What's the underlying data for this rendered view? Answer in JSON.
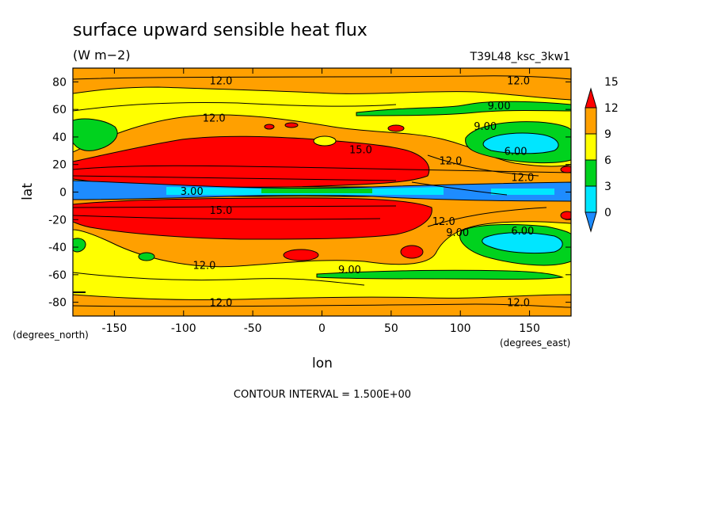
{
  "chart_data": {
    "type": "heatmap",
    "title": "surface upward sensible heat flux",
    "units": "(W m−2)",
    "run_label": "T39L48_ksc_3kw1",
    "xlabel": "lon",
    "ylabel": "lat",
    "x_unit_label": "(degrees_east)",
    "y_unit_label": "(degrees_north)",
    "xlim": [
      -180,
      180
    ],
    "ylim": [
      -90,
      90
    ],
    "x_ticks": [
      -150,
      -100,
      -50,
      0,
      50,
      100,
      150
    ],
    "y_ticks": [
      80,
      60,
      40,
      20,
      0,
      -20,
      -40,
      -60,
      -80
    ],
    "colorbar": {
      "levels": [
        0,
        3,
        6,
        9,
        12,
        15
      ],
      "colors": [
        "#1e8cff",
        "#00e6ff",
        "#00d21e",
        "#ffff00",
        "#ffa000",
        "#ff0000"
      ]
    },
    "contour_interval_text": "CONTOUR INTERVAL = 1.500E+00",
    "contour_labels": [
      {
        "text": "12.0",
        "lon": -73,
        "lat": 81
      },
      {
        "text": "12.0",
        "lon": 142,
        "lat": 81
      },
      {
        "text": "12.0",
        "lon": -78,
        "lat": 54
      },
      {
        "text": "9.00",
        "lon": 128,
        "lat": 63
      },
      {
        "text": "9.00",
        "lon": 118,
        "lat": 48
      },
      {
        "text": "15.0",
        "lon": 28,
        "lat": 31
      },
      {
        "text": "12.0",
        "lon": 93,
        "lat": 23
      },
      {
        "text": "6.00",
        "lon": 140,
        "lat": 30
      },
      {
        "text": "12.0",
        "lon": 145,
        "lat": 11
      },
      {
        "text": "3.00",
        "lon": -94,
        "lat": 1
      },
      {
        "text": "15.0",
        "lon": -73,
        "lat": -13
      },
      {
        "text": "12.0",
        "lon": 88,
        "lat": -21
      },
      {
        "text": "9.00",
        "lon": 98,
        "lat": -29
      },
      {
        "text": "6.00",
        "lon": 145,
        "lat": -28
      },
      {
        "text": "12.0",
        "lon": -85,
        "lat": -53
      },
      {
        "text": "9.00",
        "lon": 20,
        "lat": -56
      },
      {
        "text": "12.0",
        "lon": -73,
        "lat": -80
      },
      {
        "text": "12.0",
        "lon": 142,
        "lat": -80
      }
    ]
  }
}
